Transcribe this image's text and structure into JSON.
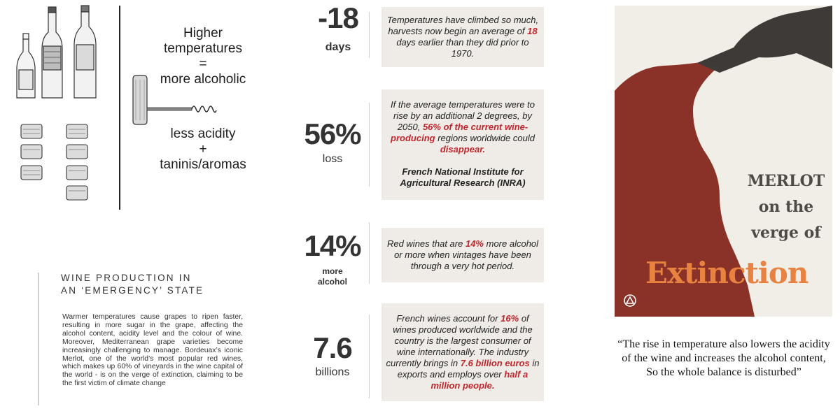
{
  "claim": {
    "top_lines": [
      "Higher",
      "temperatures",
      "=",
      "more alcoholic"
    ],
    "bottom_lines": [
      "less acidity",
      "+",
      "taninis/aromas"
    ]
  },
  "section": {
    "title_lines": [
      "WINE PRODUCTION IN",
      "AN ‘EMERGENCY’ STATE"
    ],
    "body": "Warmer temperatures cause grapes to ripen faster, resulting in more sugar in the grape, affecting the alcohol content, acidity level and the colour of wine. Moreover, Mediterranean grape varieties become increasingly challenging to manage. Bordeuax’s iconic Merlot, one of the world’s most popular red wines, which makes up 60% of vineyards in the wine capital of the world - is on the verge of extinction, claiming to be the first victim of climate change"
  },
  "stats": [
    {
      "value": "-18",
      "unit": "days",
      "card": {
        "parts": [
          {
            "t": "Temperatures have climbed so much, harvests now begin an average of "
          },
          {
            "t": "18",
            "hl": true
          },
          {
            "t": " days earlier than they did prior to 1970."
          }
        ],
        "source": ""
      }
    },
    {
      "value": "56%",
      "unit": "loss",
      "card": {
        "parts": [
          {
            "t": "If the average temperatures were to rise by an additional 2 degrees, by 2050, "
          },
          {
            "t": "56% of the current wine-producing",
            "hl": true
          },
          {
            "t": " regions worldwide could "
          },
          {
            "t": "disappear.",
            "hl": true
          }
        ],
        "source": "French National Institute for Agricultural Research (INRA)"
      }
    },
    {
      "value": "14%",
      "unit": "more\nalcohol",
      "card": {
        "parts": [
          {
            "t": "Red wines that are "
          },
          {
            "t": "14%",
            "hl": true
          },
          {
            "t": " more alcohol or more when vintages have been through a very hot period."
          }
        ],
        "source": ""
      }
    },
    {
      "value": "7.6",
      "unit": "billions",
      "card": {
        "parts": [
          {
            "t": "French wines account for "
          },
          {
            "t": "16%",
            "hl": true
          },
          {
            "t": " of wines produced worldwide and the country is the largest consumer of wine internationally. The industry currently brings in "
          },
          {
            "t": "7.6 billion euros",
            "hl": true
          },
          {
            "t": " in exports and employs over "
          },
          {
            "t": "half a million people.",
            "hl": true
          }
        ],
        "source": ""
      }
    }
  ],
  "poster": {
    "title_lines": [
      "MERLOT",
      "on the",
      "verge of"
    ],
    "extinction": "Extinction",
    "colors": {
      "background": "#f1ede7",
      "wine": "#8a3128",
      "bottle": "#3e3a37",
      "accent": "#e78240",
      "title": "#4e4a46"
    }
  },
  "quote": {
    "lines": [
      "“The rise in temperature also lowers the acidity",
      "of the wine and increases the alcohol content,",
      "So the whole balance is disturbed”"
    ]
  },
  "colors": {
    "highlight": "#c0262d",
    "card_bg": "#efebe7"
  }
}
